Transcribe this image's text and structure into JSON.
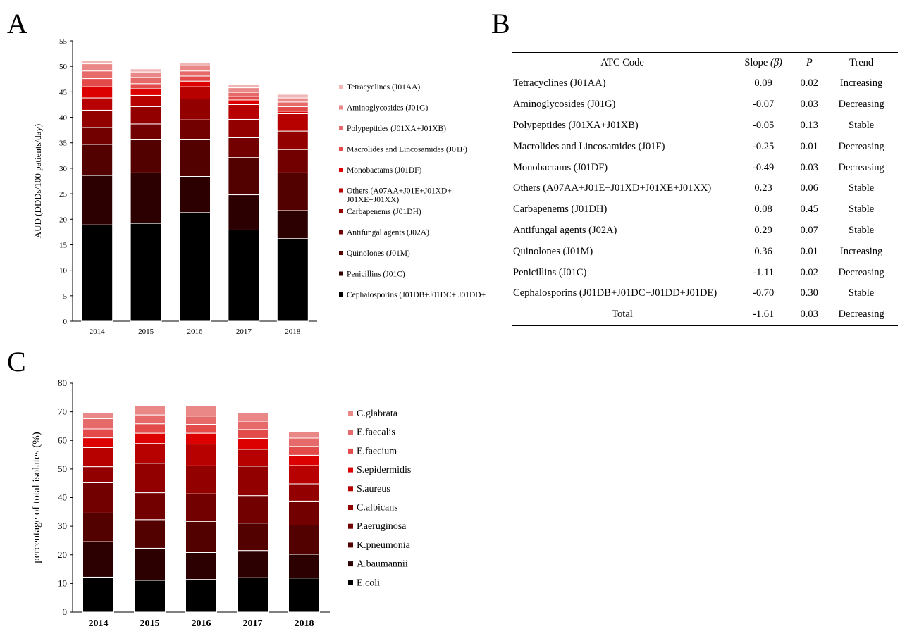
{
  "panels": {
    "a": "A",
    "b": "B",
    "c": "C"
  },
  "colors": [
    "#000000",
    "#2c0000",
    "#520000",
    "#720000",
    "#920000",
    "#b70000",
    "#dc0000",
    "#e34a4a",
    "#e66a6a",
    "#ea8888",
    "#f0b5b5"
  ],
  "chart_data": [
    {
      "panel": "A",
      "type": "bar",
      "stacked": true,
      "title": "",
      "xlabel": "",
      "ylabel": "AUD (DDDs/100 patients/day)",
      "ylim": [
        0,
        55
      ],
      "yticks": [
        0,
        5,
        10,
        15,
        20,
        25,
        30,
        35,
        40,
        45,
        50,
        55
      ],
      "grid": false,
      "legend_position": "right",
      "categories": [
        "2014",
        "2015",
        "2016",
        "2017",
        "2018"
      ],
      "series": [
        {
          "name": "Cephalosporins (J01DB+J01DC+ J01DD+J01DE)",
          "values": [
            18.9,
            19.2,
            21.3,
            17.9,
            16.2
          ]
        },
        {
          "name": "Penicillins (J01C)",
          "values": [
            9.7,
            9.9,
            7.1,
            6.9,
            5.5
          ]
        },
        {
          "name": "Quinolones (J01M)",
          "values": [
            6.1,
            6.5,
            7.2,
            7.3,
            7.4
          ]
        },
        {
          "name": "Antifungal agents (J02A)",
          "values": [
            3.3,
            3.1,
            3.9,
            3.9,
            4.6
          ]
        },
        {
          "name": "Carbapenems (J01DH)",
          "values": [
            3.4,
            3.4,
            4.1,
            3.6,
            3.6
          ]
        },
        {
          "name": "Others (A07AA+J01E+J01XD+ J01XE+J01XX)",
          "values": [
            2.4,
            2.2,
            2.4,
            2.9,
            3.4
          ]
        },
        {
          "name": "Monobactams (J01DF)",
          "values": [
            2.2,
            1.3,
            1.1,
            0.9,
            0.5
          ]
        },
        {
          "name": "Macrolides and Lincosamides (J01F)",
          "values": [
            1.6,
            1.0,
            1.0,
            0.7,
            0.9
          ]
        },
        {
          "name": "Polypeptides (J01XA+J01XB)",
          "values": [
            1.5,
            1.2,
            1.0,
            0.8,
            0.9
          ]
        },
        {
          "name": "Aminoglycosides (J01G)",
          "values": [
            1.4,
            1.1,
            1.0,
            0.9,
            0.8
          ]
        },
        {
          "name": "Tetracyclines (J01AA)",
          "values": [
            0.6,
            0.6,
            0.6,
            0.6,
            0.7
          ]
        }
      ]
    },
    {
      "panel": "C",
      "type": "bar",
      "stacked": true,
      "title": "",
      "xlabel": "",
      "ylabel": "percentage of total isolates (%)",
      "ylim": [
        0,
        80
      ],
      "yticks": [
        0,
        10,
        20,
        30,
        40,
        50,
        60,
        70,
        80
      ],
      "grid": false,
      "legend_position": "right",
      "categories": [
        "2014",
        "2015",
        "2016",
        "2017",
        "2018"
      ],
      "series": [
        {
          "name": "E.coli",
          "values": [
            12.2,
            11.1,
            11.4,
            12.0,
            11.9
          ]
        },
        {
          "name": "A.baumannii",
          "values": [
            12.4,
            11.2,
            9.4,
            9.5,
            8.3
          ]
        },
        {
          "name": "K.pneumonia",
          "values": [
            10.0,
            10.0,
            10.9,
            9.6,
            10.2
          ]
        },
        {
          "name": "P.aeruginosa",
          "values": [
            10.6,
            9.4,
            9.6,
            9.6,
            8.4
          ]
        },
        {
          "name": "C.albicans",
          "values": [
            5.6,
            10.3,
            9.8,
            10.3,
            6.0
          ]
        },
        {
          "name": "S.aureus",
          "values": [
            6.7,
            6.9,
            7.6,
            5.9,
            6.4
          ]
        },
        {
          "name": "S.epidermidis",
          "values": [
            3.4,
            3.6,
            3.8,
            3.8,
            3.6
          ]
        },
        {
          "name": "E.faecium",
          "values": [
            3.1,
            3.3,
            3.1,
            3.1,
            3.1
          ]
        },
        {
          "name": "E.faecalis",
          "values": [
            3.6,
            3.1,
            2.9,
            2.9,
            2.9
          ]
        },
        {
          "name": "C.glabrata",
          "values": [
            2.1,
            3.1,
            3.5,
            2.9,
            2.2
          ]
        }
      ]
    }
  ],
  "table": {
    "headers": {
      "atc": "ATC Code",
      "slope_pre": "Slope ",
      "slope_sym": "(β)",
      "p": "P",
      "trend": "Trend"
    },
    "rows": [
      {
        "atc": "Tetracyclines (J01AA)",
        "slope": "0.09",
        "p": "0.02",
        "trend": "Increasing"
      },
      {
        "atc": "Aminoglycosides (J01G)",
        "slope": "-0.07",
        "p": "0.03",
        "trend": "Decreasing"
      },
      {
        "atc": "Polypeptides (J01XA+J01XB)",
        "slope": "-0.05",
        "p": "0.13",
        "trend": "Stable"
      },
      {
        "atc": "Macrolides and Lincosamides (J01F)",
        "slope": "-0.25",
        "p": "0.01",
        "trend": "Decreasing"
      },
      {
        "atc": "Monobactams (J01DF)",
        "slope": "-0.49",
        "p": "0.03",
        "trend": "Decreasing"
      },
      {
        "atc": "Others (A07AA+J01E+J01XD+J01XE+J01XX)",
        "slope": "0.23",
        "p": "0.06",
        "trend": "Stable"
      },
      {
        "atc": "Carbapenems (J01DH)",
        "slope": "0.08",
        "p": "0.45",
        "trend": "Stable"
      },
      {
        "atc": "Antifungal agents (J02A)",
        "slope": "0.29",
        "p": "0.07",
        "trend": "Stable"
      },
      {
        "atc": "Quinolones (J01M)",
        "slope": "0.36",
        "p": "0.01",
        "trend": "Increasing"
      },
      {
        "atc": "Penicillins (J01C)",
        "slope": "-1.11",
        "p": "0.02",
        "trend": "Decreasing"
      },
      {
        "atc": "Cephalosporins (J01DB+J01DC+J01DD+J01DE)",
        "slope": "-0.70",
        "p": "0.30",
        "trend": "Stable"
      }
    ],
    "total": {
      "atc": "Total",
      "slope": "-1.61",
      "p": "0.03",
      "trend": "Decreasing"
    }
  }
}
